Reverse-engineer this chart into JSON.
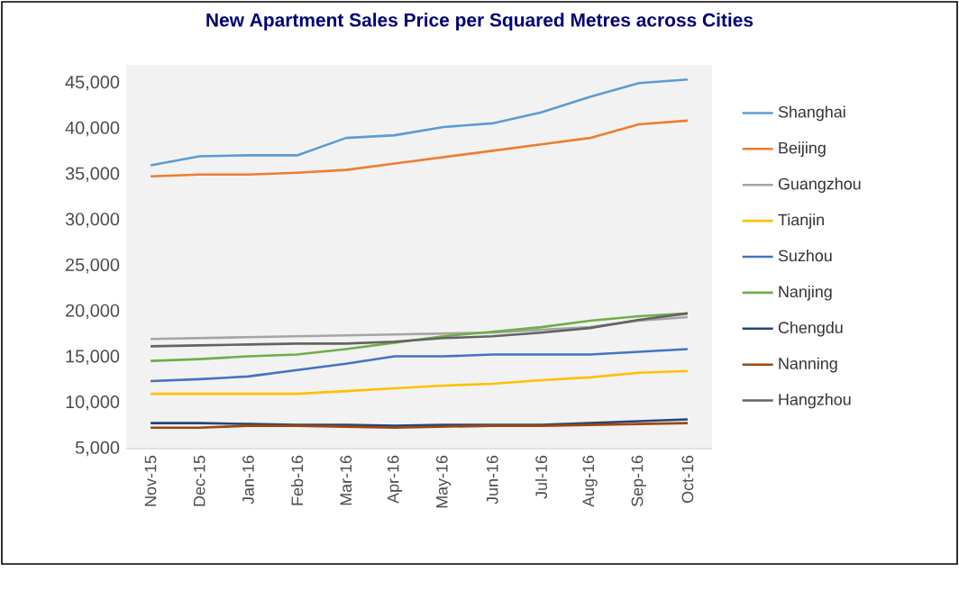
{
  "chart_data": {
    "type": "line",
    "title": "New Apartment Sales Price per Squared Metres across Cities",
    "categories": [
      "Nov-15",
      "Dec-15",
      "Jan-16",
      "Feb-16",
      "Mar-16",
      "Apr-16",
      "May-16",
      "Jun-16",
      "Jul-16",
      "Aug-16",
      "Sep-16",
      "Oct-16"
    ],
    "series": [
      {
        "name": "Shanghai",
        "color": "#5b9bd5",
        "values": [
          36000,
          37000,
          37100,
          37100,
          39000,
          39300,
          40200,
          40600,
          41800,
          43500,
          45000,
          45400
        ]
      },
      {
        "name": "Beijing",
        "color": "#ed7d31",
        "values": [
          34800,
          35000,
          35000,
          35200,
          35500,
          36200,
          36900,
          37600,
          38300,
          39000,
          40500,
          40900
        ]
      },
      {
        "name": "Guangzhou",
        "color": "#a5a5a5",
        "values": [
          17000,
          17100,
          17200,
          17300,
          17400,
          17500,
          17600,
          17700,
          18000,
          18300,
          19000,
          19400
        ]
      },
      {
        "name": "Tianjin",
        "color": "#ffc000",
        "values": [
          11000,
          11000,
          11000,
          11000,
          11300,
          11600,
          11900,
          12100,
          12500,
          12800,
          13300,
          13500
        ]
      },
      {
        "name": "Suzhou",
        "color": "#4472c4",
        "values": [
          12400,
          12600,
          12900,
          13600,
          14300,
          15100,
          15100,
          15300,
          15300,
          15300,
          15600,
          15900
        ]
      },
      {
        "name": "Nanjing",
        "color": "#70ad47",
        "values": [
          14600,
          14800,
          15100,
          15300,
          15900,
          16600,
          17300,
          17800,
          18300,
          19000,
          19500,
          19800
        ]
      },
      {
        "name": "Chengdu",
        "color": "#264478",
        "values": [
          7800,
          7800,
          7700,
          7600,
          7600,
          7500,
          7600,
          7600,
          7600,
          7800,
          8000,
          8200
        ]
      },
      {
        "name": "Nanning",
        "color": "#9e480e",
        "values": [
          7300,
          7300,
          7500,
          7500,
          7400,
          7300,
          7400,
          7500,
          7500,
          7600,
          7700,
          7800
        ]
      },
      {
        "name": "Hangzhou",
        "color": "#636363",
        "values": [
          16200,
          16300,
          16400,
          16500,
          16500,
          16700,
          17100,
          17300,
          17700,
          18200,
          19100,
          19800
        ]
      }
    ],
    "ylim": [
      5000,
      47000
    ],
    "yticks": [
      {
        "value": 5000,
        "label": "5,000"
      },
      {
        "value": 10000,
        "label": "10,000"
      },
      {
        "value": 15000,
        "label": "15,000"
      },
      {
        "value": 20000,
        "label": "20,000"
      },
      {
        "value": 25000,
        "label": "25,000"
      },
      {
        "value": 30000,
        "label": "30,000"
      },
      {
        "value": 35000,
        "label": "35,000"
      },
      {
        "value": 40000,
        "label": "40,000"
      },
      {
        "value": 45000,
        "label": "45,000"
      }
    ],
    "grid": false,
    "legend": "right",
    "marker": "none",
    "line_style": "solid"
  }
}
